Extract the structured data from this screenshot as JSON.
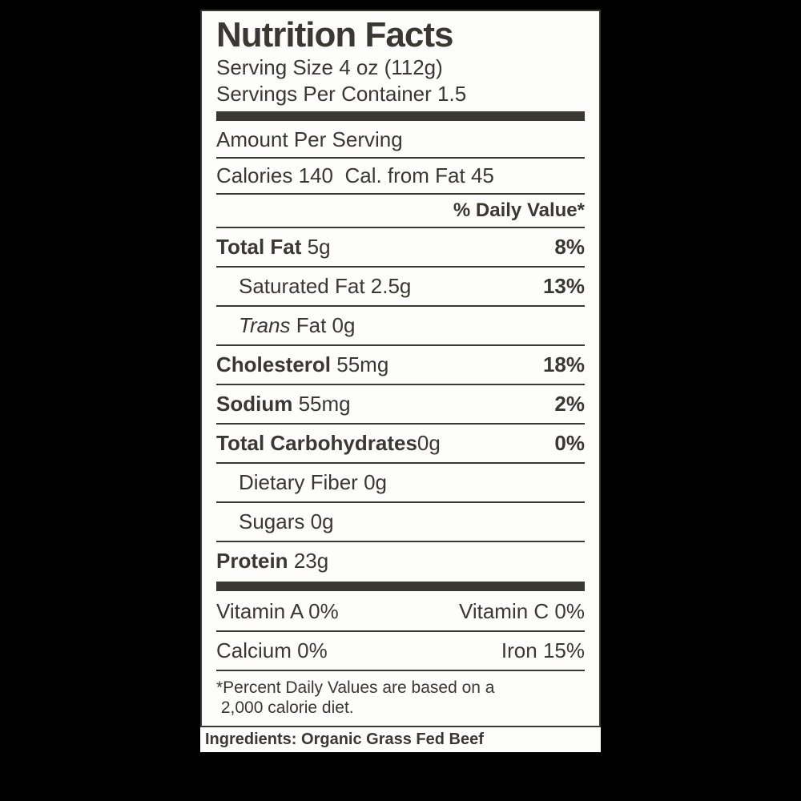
{
  "colors": {
    "page_bg": "#000000",
    "panel_bg": "#fdfdfc",
    "ink": "#3a3833"
  },
  "title": "Nutrition Facts",
  "serving_size_label": "Serving Size",
  "serving_size_value": "4 oz (112g)",
  "servings_per_container_label": "Servings Per Container",
  "servings_per_container_value": "1.5",
  "amount_per_serving": "Amount Per Serving",
  "calories_label": "Calories",
  "calories_value": "140",
  "cal_from_fat_label": "Cal. from Fat",
  "cal_from_fat_value": "45",
  "dv_header": "% Daily Value*",
  "nutrients": {
    "total_fat": {
      "label": "Total Fat",
      "amount": "5g",
      "dv": "8%"
    },
    "sat_fat": {
      "label": "Saturated Fat",
      "amount": "2.5g",
      "dv": "13%"
    },
    "trans_fat": {
      "prefix": "Trans",
      "suffix": " Fat 0g"
    },
    "cholesterol": {
      "label": "Cholesterol",
      "amount": "55mg",
      "dv": "18%"
    },
    "sodium": {
      "label": "Sodium",
      "amount": "55mg",
      "dv": "2%"
    },
    "total_carb": {
      "label": "Total Carbohydrates",
      "amount": "0g",
      "dv": "0%"
    },
    "fiber": {
      "label": "Dietary Fiber",
      "amount": "0g"
    },
    "sugars": {
      "label": "Sugars",
      "amount": "0g"
    },
    "protein": {
      "label": "Protein",
      "amount": "23g"
    }
  },
  "vitamins": {
    "a": "Vitamin A 0%",
    "c": "Vitamin C 0%",
    "calcium": "Calcium 0%",
    "iron": "Iron 15%"
  },
  "footnote_line1": "*Percent Daily Values are based on a",
  "footnote_line2": "2,000 calorie diet.",
  "ingredients_label": "Ingredients:",
  "ingredients_value": "Organic Grass Fed Beef"
}
